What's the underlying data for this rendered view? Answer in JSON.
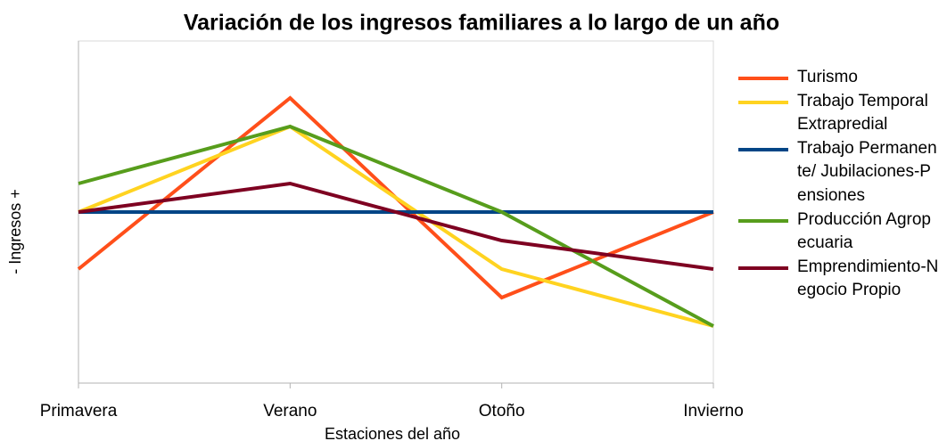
{
  "chart_data": {
    "type": "line",
    "title": "Variación de los ingresos familiares a lo largo de un año",
    "x_label": "Estaciones del año",
    "y_label": "- Ingresos +",
    "categories": [
      "Primavera",
      "Verano",
      "Otoño",
      "Invierno"
    ],
    "series": [
      {
        "name": "Turismo",
        "color": "#ff4f1a",
        "values": [
          -2,
          4,
          -3,
          0
        ]
      },
      {
        "name": "Trabajo Temporal Extrapredial",
        "color": "#ffd320",
        "values": [
          0,
          3,
          -2,
          -4
        ]
      },
      {
        "name": "Trabajo Permanente/ Jubilaciones-Pensiones",
        "color": "#004586",
        "values": [
          0,
          0,
          0,
          0
        ]
      },
      {
        "name": "Producción Agropecuaria",
        "color": "#579d1c",
        "values": [
          1,
          3,
          0,
          -4
        ]
      },
      {
        "name": "Emprendimiento-Negocio Propio",
        "color": "#7e0021",
        "values": [
          0,
          1,
          -1,
          -2
        ]
      }
    ],
    "ylim": [
      -6,
      6
    ],
    "grid": false,
    "legend": "right"
  }
}
